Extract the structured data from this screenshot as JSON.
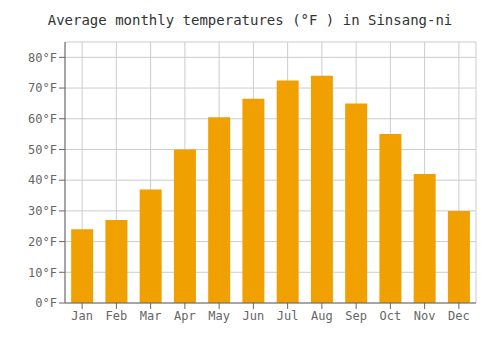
{
  "chart_data": {
    "type": "bar",
    "title": "Average monthly temperatures (°F ) in Sinsang-ni",
    "categories": [
      "Jan",
      "Feb",
      "Mar",
      "Apr",
      "May",
      "Jun",
      "Jul",
      "Aug",
      "Sep",
      "Oct",
      "Nov",
      "Dec"
    ],
    "values": [
      24,
      27,
      37,
      50,
      60.5,
      66.5,
      72.5,
      74,
      65,
      55,
      42,
      30
    ],
    "color": "#F0A000",
    "ylim": [
      0,
      85
    ],
    "yticks": [
      {
        "value": 0,
        "label": "0°F"
      },
      {
        "value": 10,
        "label": "10°F"
      },
      {
        "value": 20,
        "label": "20°F"
      },
      {
        "value": 30,
        "label": "30°F"
      },
      {
        "value": 40,
        "label": "40°F"
      },
      {
        "value": 50,
        "label": "50°F"
      },
      {
        "value": 60,
        "label": "60°F"
      },
      {
        "value": 70,
        "label": "70°F"
      },
      {
        "value": 80,
        "label": "80°F"
      }
    ],
    "grid": true
  }
}
